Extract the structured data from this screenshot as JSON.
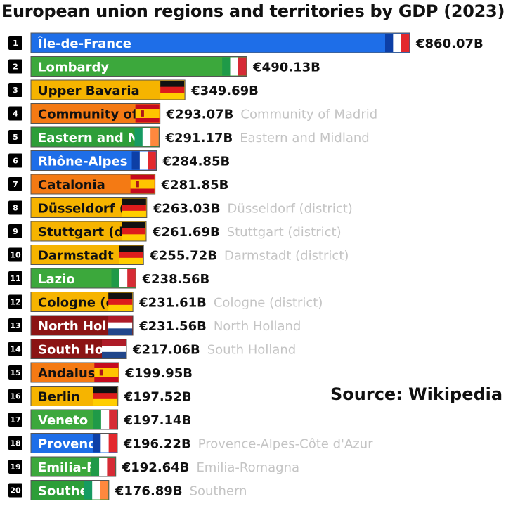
{
  "title": "European union regions and territories by GDP (2023)",
  "source": "Source: Wikipedia",
  "colors": {
    "France": "#1e6ee8",
    "Italy": "#3ca83c",
    "Germany": "#f6b400",
    "Spain": "#f47a14",
    "Ireland": "#2d9e38",
    "Netherlands": "#8b1414"
  },
  "chart_data": {
    "type": "bar",
    "orientation": "horizontal",
    "title": "European union regions and territories by GDP (2023)",
    "unit": "€ billions",
    "xlim": [
      0,
      860.07
    ],
    "rows": [
      {
        "rank": "1",
        "label": "Île-de-France",
        "full": "",
        "value": 860.07,
        "value_label": "€860.07B",
        "country": "France"
      },
      {
        "rank": "2",
        "label": "Lombardy",
        "full": "",
        "value": 490.13,
        "value_label": "€490.13B",
        "country": "Italy"
      },
      {
        "rank": "3",
        "label": "Upper Bavaria",
        "full": "",
        "value": 349.69,
        "value_label": "€349.69B",
        "country": "Germany"
      },
      {
        "rank": "4",
        "label": "Community of",
        "full": "Community of Madrid",
        "value": 293.07,
        "value_label": "€293.07B",
        "country": "Spain"
      },
      {
        "rank": "5",
        "label": "Eastern and M",
        "full": "Eastern and Midland",
        "value": 291.17,
        "value_label": "€291.17B",
        "country": "Ireland"
      },
      {
        "rank": "6",
        "label": "Rhône-Alpes",
        "full": "",
        "value": 284.85,
        "value_label": "€284.85B",
        "country": "France"
      },
      {
        "rank": "7",
        "label": "Catalonia",
        "full": "",
        "value": 281.85,
        "value_label": "€281.85B",
        "country": "Spain"
      },
      {
        "rank": "8",
        "label": "Düsseldorf (",
        "full": "Düsseldorf (district)",
        "value": 263.03,
        "value_label": "€263.03B",
        "country": "Germany"
      },
      {
        "rank": "9",
        "label": "Stuttgart (di",
        "full": "Stuttgart (district)",
        "value": 261.69,
        "value_label": "€261.69B",
        "country": "Germany"
      },
      {
        "rank": "10",
        "label": "Darmstadt (",
        "full": "Darmstadt (district)",
        "value": 255.72,
        "value_label": "€255.72B",
        "country": "Germany"
      },
      {
        "rank": "11",
        "label": "Lazio",
        "full": "",
        "value": 238.56,
        "value_label": "€238.56B",
        "country": "Italy"
      },
      {
        "rank": "12",
        "label": "Cologne (d",
        "full": "Cologne (district)",
        "value": 231.61,
        "value_label": "€231.61B",
        "country": "Germany"
      },
      {
        "rank": "13",
        "label": "North Holl",
        "full": "North Holland",
        "value": 231.56,
        "value_label": "€231.56B",
        "country": "Netherlands"
      },
      {
        "rank": "14",
        "label": "South Ho",
        "full": "South Holland",
        "value": 217.06,
        "value_label": "€217.06B",
        "country": "Netherlands"
      },
      {
        "rank": "15",
        "label": "Andalus",
        "full": "",
        "value": 199.95,
        "value_label": "€199.95B",
        "country": "Spain"
      },
      {
        "rank": "16",
        "label": "Berlin",
        "full": "",
        "value": 197.52,
        "value_label": "€197.52B",
        "country": "Germany"
      },
      {
        "rank": "17",
        "label": "Veneto",
        "full": "",
        "value": 197.14,
        "value_label": "€197.14B",
        "country": "Italy"
      },
      {
        "rank": "18",
        "label": "Provenc",
        "full": "Provence-Alpes-Côte d'Azur",
        "value": 196.22,
        "value_label": "€196.22B",
        "country": "France"
      },
      {
        "rank": "19",
        "label": "Emilia-R",
        "full": "Emilia-Romagna",
        "value": 192.64,
        "value_label": "€192.64B",
        "country": "Italy"
      },
      {
        "rank": "20",
        "label": "Southe",
        "full": "Southern",
        "value": 176.89,
        "value_label": "€176.89B",
        "country": "Ireland"
      }
    ]
  }
}
